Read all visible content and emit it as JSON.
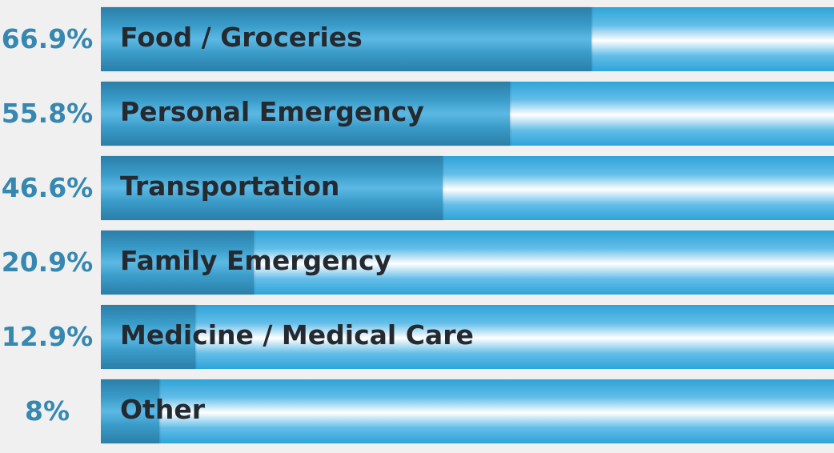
{
  "chart_data": {
    "type": "bar",
    "orientation": "horizontal",
    "categories": [
      "Food / Groceries",
      "Personal Emergency",
      "Transportation",
      "Family Emergency",
      "Medicine / Medical Care",
      "Other"
    ],
    "values": [
      66.9,
      55.8,
      46.6,
      20.9,
      12.9,
      8
    ],
    "value_labels": [
      "66.9%",
      "55.8%",
      "46.6%",
      "20.9%",
      "12.9%",
      "8%"
    ],
    "unit": "%",
    "xlim": [
      0,
      100
    ],
    "title": "",
    "xlabel": "",
    "ylabel": "",
    "grid": false,
    "legend": "none",
    "colors": {
      "fill": "#2f8fbd",
      "track": "#5ab8e6",
      "value_text": "#3688b0",
      "label_text": "#252a31",
      "background": "#f0f0f0"
    }
  }
}
